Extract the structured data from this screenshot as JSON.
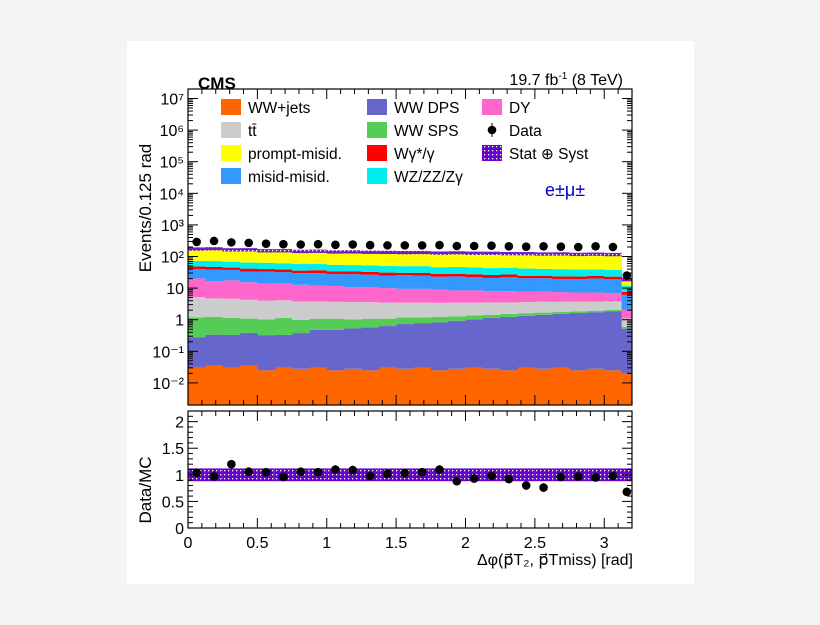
{
  "chart_data": {
    "type": "bar",
    "experiment": "CMS",
    "lumi": "19.7 fb",
    "lumi_sup": "-1",
    "energy": " (8 TeV)",
    "channel": "e±μ±",
    "ylabel": "Events/0.125 rad",
    "ratio_ylabel": "Data/MC",
    "xlabel": "Δφ(p⃗T₂, p⃗Tmiss) [rad]",
    "xlim": [
      0,
      3.2
    ],
    "ylim": [
      0.002,
      20000000
    ],
    "yscale": "log",
    "y_ticks": [
      "10⁷",
      "10⁶",
      "10⁵",
      "10⁴",
      "10³",
      "10²",
      "10",
      "1",
      "10⁻¹",
      "10⁻²"
    ],
    "y_tick_values": [
      10000000.0,
      1000000.0,
      100000.0,
      10000.0,
      1000.0,
      100.0,
      10,
      1,
      0.1,
      0.01
    ],
    "x_ticks": [
      "0",
      "0.5",
      "1",
      "1.5",
      "2",
      "2.5",
      "3"
    ],
    "x_tick_values": [
      0,
      0.5,
      1,
      1.5,
      2,
      2.5,
      3
    ],
    "ratio_ylim": [
      0,
      2.2
    ],
    "ratio_ticks": [
      "0",
      "0.5",
      "1",
      "1.5",
      "2"
    ],
    "ratio_tick_values": [
      0,
      0.5,
      1,
      1.5,
      2
    ],
    "bin_edges": [
      0,
      0.125,
      0.25,
      0.375,
      0.5,
      0.625,
      0.75,
      0.875,
      1.0,
      1.125,
      1.25,
      1.375,
      1.5,
      1.625,
      1.75,
      1.875,
      2.0,
      2.125,
      2.25,
      2.375,
      2.5,
      2.625,
      2.75,
      2.875,
      3.0,
      3.125,
      3.2
    ],
    "series": [
      {
        "name": "WW+jets",
        "color": "#ff6600",
        "values": [
          0.03,
          0.035,
          0.03,
          0.035,
          0.025,
          0.03,
          0.028,
          0.03,
          0.025,
          0.028,
          0.025,
          0.03,
          0.028,
          0.03,
          0.025,
          0.028,
          0.03,
          0.028,
          0.025,
          0.03,
          0.028,
          0.03,
          0.025,
          0.028,
          0.025,
          0.02
        ]
      },
      {
        "name": "WW DPS",
        "color": "#6666cc",
        "values": [
          0.25,
          0.3,
          0.3,
          0.35,
          0.3,
          0.3,
          0.35,
          0.45,
          0.45,
          0.5,
          0.55,
          0.6,
          0.7,
          0.75,
          0.8,
          0.9,
          1.0,
          1.1,
          1.2,
          1.3,
          1.4,
          1.5,
          1.6,
          1.7,
          1.8,
          0.5
        ]
      },
      {
        "name": "WW SPS",
        "color": "#55cc55",
        "values": [
          0.9,
          0.9,
          0.8,
          0.7,
          0.7,
          0.8,
          0.6,
          0.6,
          0.6,
          0.5,
          0.5,
          0.45,
          0.45,
          0.4,
          0.4,
          0.35,
          0.35,
          0.3,
          0.3,
          0.28,
          0.25,
          0.25,
          0.22,
          0.2,
          0.2,
          0.08
        ]
      },
      {
        "name": "tt̄",
        "color": "#cccccc",
        "values": [
          4,
          3.5,
          3.5,
          3.2,
          3,
          3,
          2.8,
          2.7,
          2.6,
          2.6,
          2.5,
          2.4,
          2.3,
          2.3,
          2.2,
          2.2,
          2.1,
          2.1,
          2.0,
          2.0,
          2.0,
          1.9,
          1.9,
          1.8,
          1.8,
          0.5
        ]
      },
      {
        "name": "DY",
        "color": "#ff66cc",
        "values": [
          15,
          12,
          13,
          11,
          10,
          10,
          9,
          8,
          8,
          7,
          7,
          6.5,
          6,
          6,
          5.5,
          5,
          5,
          4.5,
          4.5,
          4,
          4,
          3.8,
          3.5,
          3.5,
          3.2,
          1
        ]
      },
      {
        "name": "misid-misid.",
        "color": "#3399ff",
        "values": [
          20,
          22,
          20,
          18,
          19,
          18,
          17,
          18,
          16,
          17,
          16,
          15,
          16,
          15,
          14,
          15,
          14,
          13,
          14,
          13,
          13,
          12,
          12,
          13,
          12,
          4
        ]
      },
      {
        "name": "Wγ*/γ",
        "color": "#ff0000",
        "values": [
          8,
          8,
          7,
          8,
          7,
          7,
          6,
          7,
          6,
          6,
          6,
          6,
          5,
          6,
          5,
          5,
          5,
          5,
          5,
          4,
          4,
          4,
          4,
          4,
          4,
          1.5
        ]
      },
      {
        "name": "WZ/ZZ/Zγ",
        "color": "#00eeee",
        "values": [
          25,
          25,
          24,
          23,
          23,
          22,
          22,
          21,
          21,
          20,
          20,
          19,
          19,
          19,
          18,
          18,
          18,
          17,
          17,
          17,
          16,
          16,
          16,
          15,
          15,
          4
        ]
      },
      {
        "name": "prompt-misid.",
        "color": "#ffff00",
        "values": [
          100,
          105,
          95,
          100,
          90,
          92,
          88,
          90,
          86,
          88,
          85,
          86,
          84,
          85,
          83,
          85,
          82,
          84,
          80,
          82,
          80,
          82,
          78,
          80,
          78,
          7
        ]
      }
    ],
    "data": [
      290,
      310,
      280,
      270,
      255,
      245,
      240,
      245,
      235,
      240,
      230,
      225,
      225,
      225,
      230,
      215,
      215,
      220,
      210,
      205,
      210,
      205,
      200,
      210,
      200,
      25
    ],
    "stat_syst_band": {
      "name": "Stat ⊕ Syst",
      "color": "#6600cc",
      "relative_error": 0.12
    },
    "ratio": [
      1.04,
      0.97,
      1.2,
      1.06,
      1.05,
      0.96,
      1.06,
      1.05,
      1.1,
      1.09,
      0.98,
      1.02,
      1.03,
      1.05,
      1.1,
      0.88,
      0.93,
      0.98,
      0.92,
      0.8,
      0.76,
      0.96,
      0.97,
      0.95,
      0.98,
      0.68
    ],
    "legend": [
      {
        "label": "WW+jets",
        "kind": "box",
        "color": "#ff6600"
      },
      {
        "label": "WW DPS",
        "kind": "box",
        "color": "#6666cc"
      },
      {
        "label": "DY",
        "kind": "box",
        "color": "#ff66cc"
      },
      {
        "label": "tt̄",
        "kind": "box",
        "color": "#cccccc"
      },
      {
        "label": "WW SPS",
        "kind": "box",
        "color": "#55cc55"
      },
      {
        "label": "Data",
        "kind": "marker",
        "color": "#000000"
      },
      {
        "label": "prompt-misid.",
        "kind": "box",
        "color": "#ffff00"
      },
      {
        "label": "Wγ*/γ",
        "kind": "box",
        "color": "#ff0000"
      },
      {
        "label": "Stat ⊕ Syst",
        "kind": "band",
        "color": "#6600cc"
      },
      {
        "label": "misid-misid.",
        "kind": "box",
        "color": "#3399ff"
      },
      {
        "label": "WZ/ZZ/Zγ",
        "kind": "box",
        "color": "#00eeee"
      }
    ]
  }
}
